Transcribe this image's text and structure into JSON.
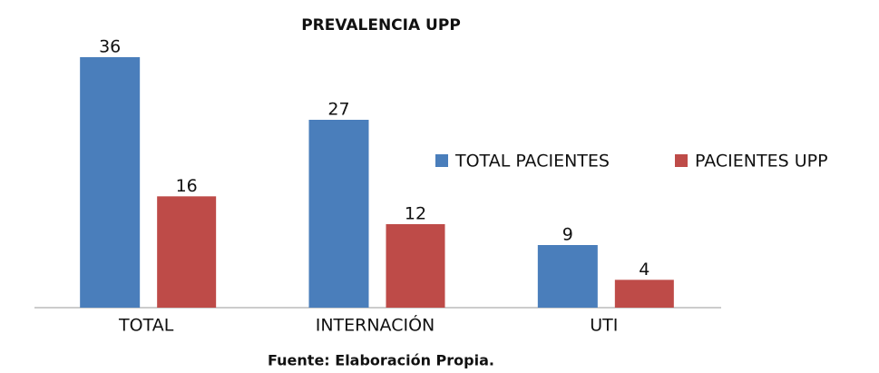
{
  "chart_data": {
    "type": "bar",
    "title": "PREVALENCIA UPP",
    "categories": [
      "TOTAL",
      "INTERNACIÓN",
      "UTI"
    ],
    "series": [
      {
        "name": "TOTAL PACIENTES",
        "color": "#4a7ebb",
        "values": [
          36,
          27,
          9
        ]
      },
      {
        "name": "PACIENTES UPP",
        "color": "#be4b48",
        "values": [
          16,
          12,
          4
        ]
      }
    ],
    "legend": "right",
    "source": "Fuente: Elaboración Propia."
  }
}
